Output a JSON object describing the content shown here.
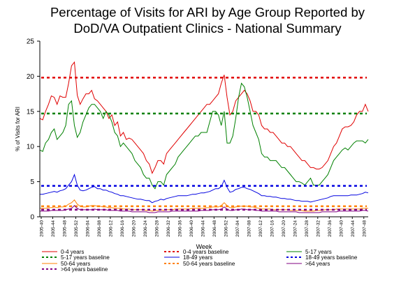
{
  "chart_data": {
    "type": "line",
    "title": "Percentage of Visits for ARI by Age Group Reported by\nDoD/VA Outpatient Clinics - National Summary",
    "xlabel": "Week",
    "ylabel": "% of Visits for ARI",
    "ylim": [
      0,
      25
    ],
    "yticks": [
      0,
      5,
      10,
      15,
      20,
      25
    ],
    "grid": false,
    "legend_position": "bottom",
    "x_tick_labels": [
      "2005-40",
      "2005-44",
      "2005-48",
      "2005-52",
      "2006-04",
      "2006-08",
      "2006-12",
      "2006-16",
      "2006-20",
      "2006-24",
      "2006-28",
      "2006-32",
      "2006-36",
      "2006-40",
      "2006-44",
      "2006-48",
      "2006-52",
      "2007-04",
      "2007-08",
      "2007-12",
      "2007-16",
      "2007-20",
      "2007-24",
      "2007-28",
      "2007-32",
      "2007-36",
      "2007-40",
      "2007-44",
      "2007-48"
    ],
    "series": [
      {
        "name": "0-4 years",
        "color": "#e00000",
        "style": "solid",
        "values": [
          14.0,
          13.8,
          15.0,
          16.0,
          17.2,
          17.0,
          16.0,
          17.2,
          17.0,
          17.0,
          19.0,
          21.5,
          22.0,
          17.3,
          16.0,
          16.8,
          17.5,
          17.5,
          18.0,
          16.8,
          16.5,
          16.0,
          15.5,
          15.0,
          14.0,
          14.5,
          13.0,
          13.5,
          11.5,
          12.0,
          11.0,
          11.2,
          11.0,
          10.5,
          10.0,
          9.5,
          9.0,
          8.0,
          7.5,
          6.2,
          7.0,
          8.0,
          8.0,
          7.5,
          9.0,
          9.5,
          10.0,
          10.5,
          11.0,
          11.5,
          12.0,
          12.5,
          13.0,
          13.5,
          14.0,
          14.5,
          15.0,
          15.5,
          16.0,
          16.0,
          16.5,
          17.0,
          17.5,
          19.0,
          20.2,
          17.0,
          14.5,
          15.0,
          16.5,
          17.0,
          17.5,
          18.0,
          17.5,
          16.5,
          15.0,
          15.0,
          14.5,
          13.0,
          12.5,
          12.5,
          12.0,
          12.0,
          11.5,
          11.0,
          10.5,
          10.5,
          10.0,
          10.0,
          9.5,
          9.0,
          8.5,
          8.0,
          8.0,
          7.5,
          7.0,
          7.0,
          6.8,
          6.8,
          7.0,
          7.5,
          8.0,
          9.0,
          10.0,
          10.5,
          11.5,
          12.5,
          12.8,
          12.8,
          13.0,
          13.5,
          14.5,
          15.0,
          15.0,
          16.0,
          15.0
        ]
      },
      {
        "name": "0-4 years baseline",
        "color": "#e00000",
        "style": "dotted",
        "values": [
          19.8
        ]
      },
      {
        "name": "5-17 years",
        "color": "#008000",
        "style": "solid",
        "values": [
          9.5,
          9.3,
          10.5,
          11.0,
          12.0,
          12.5,
          11.0,
          11.5,
          12.0,
          13.0,
          16.0,
          16.5,
          13.0,
          11.3,
          12.0,
          13.5,
          14.5,
          15.5,
          16.0,
          16.0,
          15.5,
          15.0,
          14.0,
          15.0,
          14.5,
          13.5,
          12.0,
          11.5,
          10.0,
          10.5,
          10.0,
          9.5,
          9.0,
          8.0,
          7.5,
          7.0,
          6.0,
          5.5,
          5.5,
          4.5,
          4.0,
          5.0,
          5.0,
          4.5,
          6.0,
          6.5,
          7.0,
          7.5,
          8.5,
          9.0,
          9.5,
          10.0,
          10.5,
          11.0,
          11.5,
          11.5,
          12.0,
          12.0,
          12.0,
          13.5,
          15.0,
          15.0,
          14.5,
          13.0,
          15.0,
          10.5,
          10.5,
          11.5,
          14.0,
          17.0,
          19.0,
          18.5,
          17.0,
          15.0,
          13.0,
          12.0,
          11.0,
          9.0,
          8.5,
          8.5,
          8.0,
          8.0,
          8.0,
          7.5,
          7.0,
          7.0,
          6.5,
          6.0,
          5.5,
          5.0,
          5.0,
          4.8,
          4.5,
          5.0,
          5.5,
          4.5,
          4.5,
          4.5,
          5.0,
          5.5,
          6.0,
          7.0,
          8.0,
          8.5,
          9.0,
          9.5,
          9.8,
          9.5,
          10.0,
          10.5,
          10.8,
          10.8,
          10.8,
          10.5,
          11.0
        ]
      },
      {
        "name": "5-17 years baseline",
        "color": "#008000",
        "style": "dotted",
        "values": [
          14.7
        ]
      },
      {
        "name": "18-49 years",
        "color": "#0000e0",
        "style": "solid",
        "values": [
          3.2,
          3.2,
          3.3,
          3.4,
          3.5,
          3.6,
          3.5,
          3.7,
          3.8,
          4.0,
          4.5,
          5.0,
          6.0,
          4.5,
          3.8,
          3.7,
          3.8,
          4.0,
          4.2,
          4.3,
          4.0,
          4.0,
          3.8,
          3.8,
          3.6,
          3.5,
          3.3,
          3.2,
          3.0,
          3.0,
          2.9,
          2.8,
          2.7,
          2.6,
          2.5,
          2.5,
          2.4,
          2.3,
          2.3,
          2.0,
          2.2,
          2.3,
          2.5,
          2.4,
          2.6,
          2.7,
          2.8,
          2.9,
          3.0,
          3.0,
          3.0,
          3.0,
          3.1,
          3.2,
          3.2,
          3.3,
          3.4,
          3.4,
          3.5,
          3.6,
          3.8,
          4.0,
          4.0,
          4.3,
          5.2,
          4.2,
          3.5,
          3.6,
          3.9,
          4.0,
          4.2,
          4.2,
          4.0,
          3.9,
          3.7,
          3.5,
          3.3,
          3.0,
          3.0,
          2.9,
          2.9,
          2.8,
          2.8,
          2.7,
          2.6,
          2.6,
          2.5,
          2.5,
          2.4,
          2.3,
          2.3,
          2.2,
          2.2,
          2.2,
          2.1,
          2.2,
          2.3,
          2.4,
          2.5,
          2.6,
          2.7,
          2.9,
          3.0,
          3.0,
          3.0,
          3.0,
          3.0,
          3.0,
          3.1,
          3.1,
          3.1,
          3.2,
          3.3,
          3.5,
          3.4
        ]
      },
      {
        "name": "18-49 years baseline",
        "color": "#0000e0",
        "style": "dotted",
        "values": [
          4.4
        ]
      },
      {
        "name": "50-64 years",
        "color": "#ff8000",
        "style": "solid",
        "values": [
          1.2,
          1.2,
          1.2,
          1.3,
          1.3,
          1.4,
          1.3,
          1.4,
          1.4,
          1.5,
          1.8,
          2.0,
          2.4,
          1.8,
          1.5,
          1.4,
          1.4,
          1.5,
          1.6,
          1.6,
          1.5,
          1.5,
          1.4,
          1.4,
          1.3,
          1.3,
          1.2,
          1.2,
          1.2,
          1.1,
          1.1,
          1.1,
          1.0,
          1.0,
          1.0,
          1.0,
          1.0,
          0.9,
          0.9,
          0.8,
          0.9,
          0.9,
          1.0,
          0.9,
          1.0,
          1.0,
          1.0,
          1.1,
          1.1,
          1.1,
          1.1,
          1.1,
          1.1,
          1.2,
          1.2,
          1.2,
          1.2,
          1.2,
          1.3,
          1.3,
          1.4,
          1.4,
          1.4,
          1.6,
          2.0,
          1.6,
          1.3,
          1.3,
          1.4,
          1.5,
          1.5,
          1.5,
          1.5,
          1.4,
          1.4,
          1.3,
          1.2,
          1.1,
          1.1,
          1.1,
          1.1,
          1.0,
          1.0,
          1.0,
          1.0,
          1.0,
          1.0,
          0.9,
          0.9,
          0.9,
          0.9,
          0.9,
          0.8,
          0.8,
          0.8,
          0.8,
          0.9,
          0.9,
          0.9,
          1.0,
          1.0,
          1.0,
          1.0,
          1.1,
          1.1,
          1.1,
          1.1,
          1.1,
          1.1,
          1.1,
          1.1,
          1.1,
          1.2,
          1.2,
          1.2
        ]
      },
      {
        "name": "50-64 years baseline",
        "color": "#ff8000",
        "style": "dotted",
        "values": [
          1.5
        ]
      },
      {
        "name": ">64 years",
        "color": "#800080",
        "style": "solid",
        "values": [
          0.8,
          0.8,
          0.8,
          0.8,
          0.9,
          0.9,
          0.9,
          0.9,
          0.9,
          1.0,
          1.1,
          1.2,
          1.6,
          1.2,
          1.0,
          1.0,
          1.0,
          1.0,
          1.0,
          1.1,
          1.0,
          1.0,
          1.0,
          1.0,
          0.9,
          0.9,
          0.9,
          0.9,
          0.8,
          0.8,
          0.8,
          0.8,
          0.7,
          0.7,
          0.7,
          0.7,
          0.7,
          0.7,
          0.6,
          0.6,
          0.6,
          0.7,
          0.7,
          0.7,
          0.7,
          0.7,
          0.8,
          0.8,
          0.8,
          0.8,
          0.8,
          0.8,
          0.8,
          0.8,
          0.8,
          0.8,
          0.9,
          0.9,
          0.9,
          0.9,
          1.0,
          1.0,
          1.0,
          1.1,
          1.4,
          1.1,
          0.9,
          0.9,
          1.0,
          1.0,
          1.1,
          1.1,
          1.0,
          1.0,
          1.0,
          0.9,
          0.9,
          0.8,
          0.8,
          0.8,
          0.8,
          0.8,
          0.8,
          0.7,
          0.7,
          0.7,
          0.7,
          0.7,
          0.7,
          0.7,
          0.6,
          0.6,
          0.6,
          0.6,
          0.6,
          0.6,
          0.6,
          0.6,
          0.7,
          0.7,
          0.7,
          0.7,
          0.7,
          0.7,
          0.8,
          0.8,
          0.8,
          0.8,
          0.8,
          0.8,
          0.8,
          0.8,
          0.9,
          0.9,
          0.8
        ]
      },
      {
        "name": ">64 years baseline",
        "color": "#800080",
        "style": "dotted",
        "values": [
          1.0
        ]
      }
    ]
  }
}
